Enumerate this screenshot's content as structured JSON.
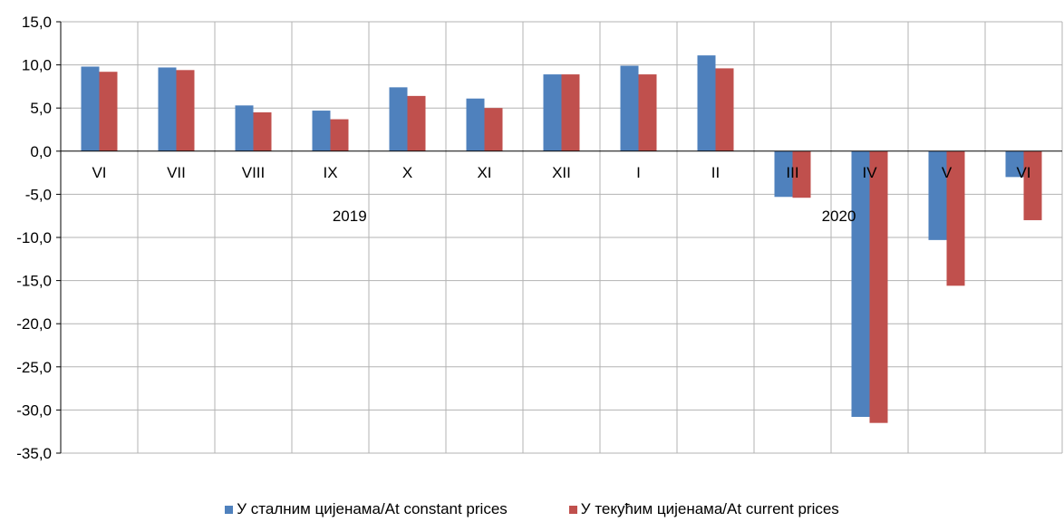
{
  "chart_data": {
    "type": "bar",
    "categories": [
      "VI",
      "VII",
      "VIII",
      "IX",
      "X",
      "XI",
      "XII",
      "I",
      "II",
      "III",
      "IV",
      "V",
      "VI"
    ],
    "series": [
      {
        "name": "У сталним цијенама/At constant prices",
        "color": "#4f81bd",
        "values": [
          9.8,
          9.7,
          5.3,
          4.7,
          7.4,
          6.1,
          8.9,
          9.9,
          11.1,
          -5.3,
          -30.8,
          -10.3,
          -3.0
        ]
      },
      {
        "name": "У текућим цијенама/At current prices",
        "color": "#c0504d",
        "values": [
          9.2,
          9.4,
          4.5,
          3.7,
          6.4,
          5.0,
          8.9,
          8.9,
          9.6,
          -5.4,
          -31.5,
          -15.6,
          -8.0
        ]
      }
    ],
    "ylim": [
      -35,
      15
    ],
    "yticks": [
      "15,0",
      "10,0",
      "5,0",
      "0,0",
      "-5,0",
      "-10,0",
      "-15,0",
      "-20,0",
      "-25,0",
      "-30,0",
      "-35,0"
    ],
    "annotations": [
      "2019",
      "2020"
    ],
    "grid": true,
    "legend": "bottom"
  },
  "legend": {
    "constant": "У сталним цијенама/At constant prices",
    "current": "У текућим цијенама/At current prices"
  }
}
